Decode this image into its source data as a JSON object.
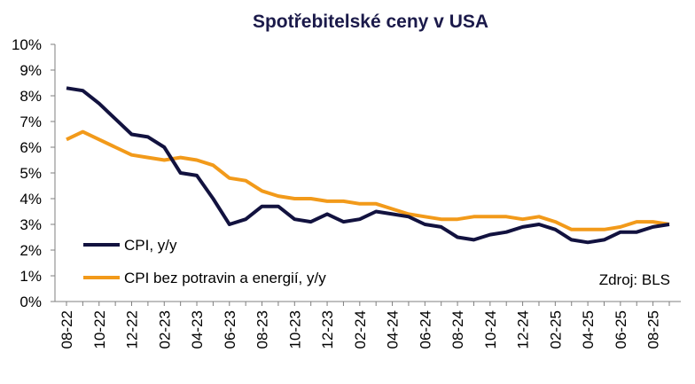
{
  "chart_data": {
    "type": "line",
    "title": "Spotřebitelské ceny v USA",
    "xlabel": "",
    "ylabel": "",
    "ylim": [
      0,
      10
    ],
    "y_ticks": [
      "0%",
      "1%",
      "2%",
      "3%",
      "4%",
      "5%",
      "6%",
      "7%",
      "8%",
      "9%",
      "10%"
    ],
    "x": [
      "08-22",
      "09-22",
      "10-22",
      "11-22",
      "12-22",
      "01-23",
      "02-23",
      "03-23",
      "04-23",
      "05-23",
      "06-23",
      "07-23",
      "08-23",
      "09-23",
      "10-23",
      "11-23",
      "12-23",
      "01-24",
      "02-24",
      "03-24",
      "04-24",
      "05-24",
      "06-24",
      "07-24",
      "08-24",
      "09-24",
      "10-24",
      "11-24",
      "12-24",
      "01-25",
      "02-25",
      "03-25",
      "04-25",
      "05-25",
      "06-25",
      "07-25",
      "08-25",
      "09-25"
    ],
    "x_tick_labels": [
      "08-22",
      "10-22",
      "12-22",
      "02-23",
      "04-23",
      "06-23",
      "08-23",
      "10-23",
      "12-23",
      "02-24",
      "04-24",
      "06-24",
      "08-24",
      "10-24",
      "12-24",
      "02-25",
      "04-25",
      "06-25",
      "08-25"
    ],
    "series": [
      {
        "name": "CPI, y/y",
        "color": "#12123f",
        "values": [
          8.3,
          8.2,
          7.7,
          7.1,
          6.5,
          6.4,
          6.0,
          5.0,
          4.9,
          4.0,
          3.0,
          3.2,
          3.7,
          3.7,
          3.2,
          3.1,
          3.4,
          3.1,
          3.2,
          3.5,
          3.4,
          3.3,
          3.0,
          2.9,
          2.5,
          2.4,
          2.6,
          2.7,
          2.9,
          3.0,
          2.8,
          2.4,
          2.3,
          2.4,
          2.7,
          2.7,
          2.9,
          3.0
        ]
      },
      {
        "name": "CPI bez potravin a energií, y/y",
        "color": "#f29a1a",
        "values": [
          6.3,
          6.6,
          6.3,
          6.0,
          5.7,
          5.6,
          5.5,
          5.6,
          5.5,
          5.3,
          4.8,
          4.7,
          4.3,
          4.1,
          4.0,
          4.0,
          3.9,
          3.9,
          3.8,
          3.8,
          3.6,
          3.4,
          3.3,
          3.2,
          3.2,
          3.3,
          3.3,
          3.3,
          3.2,
          3.3,
          3.1,
          2.8,
          2.8,
          2.8,
          2.9,
          3.1,
          3.1,
          3.0
        ]
      }
    ],
    "legend_position": "bottom-left",
    "annotation": "Zdroj: BLS",
    "grid": false
  }
}
